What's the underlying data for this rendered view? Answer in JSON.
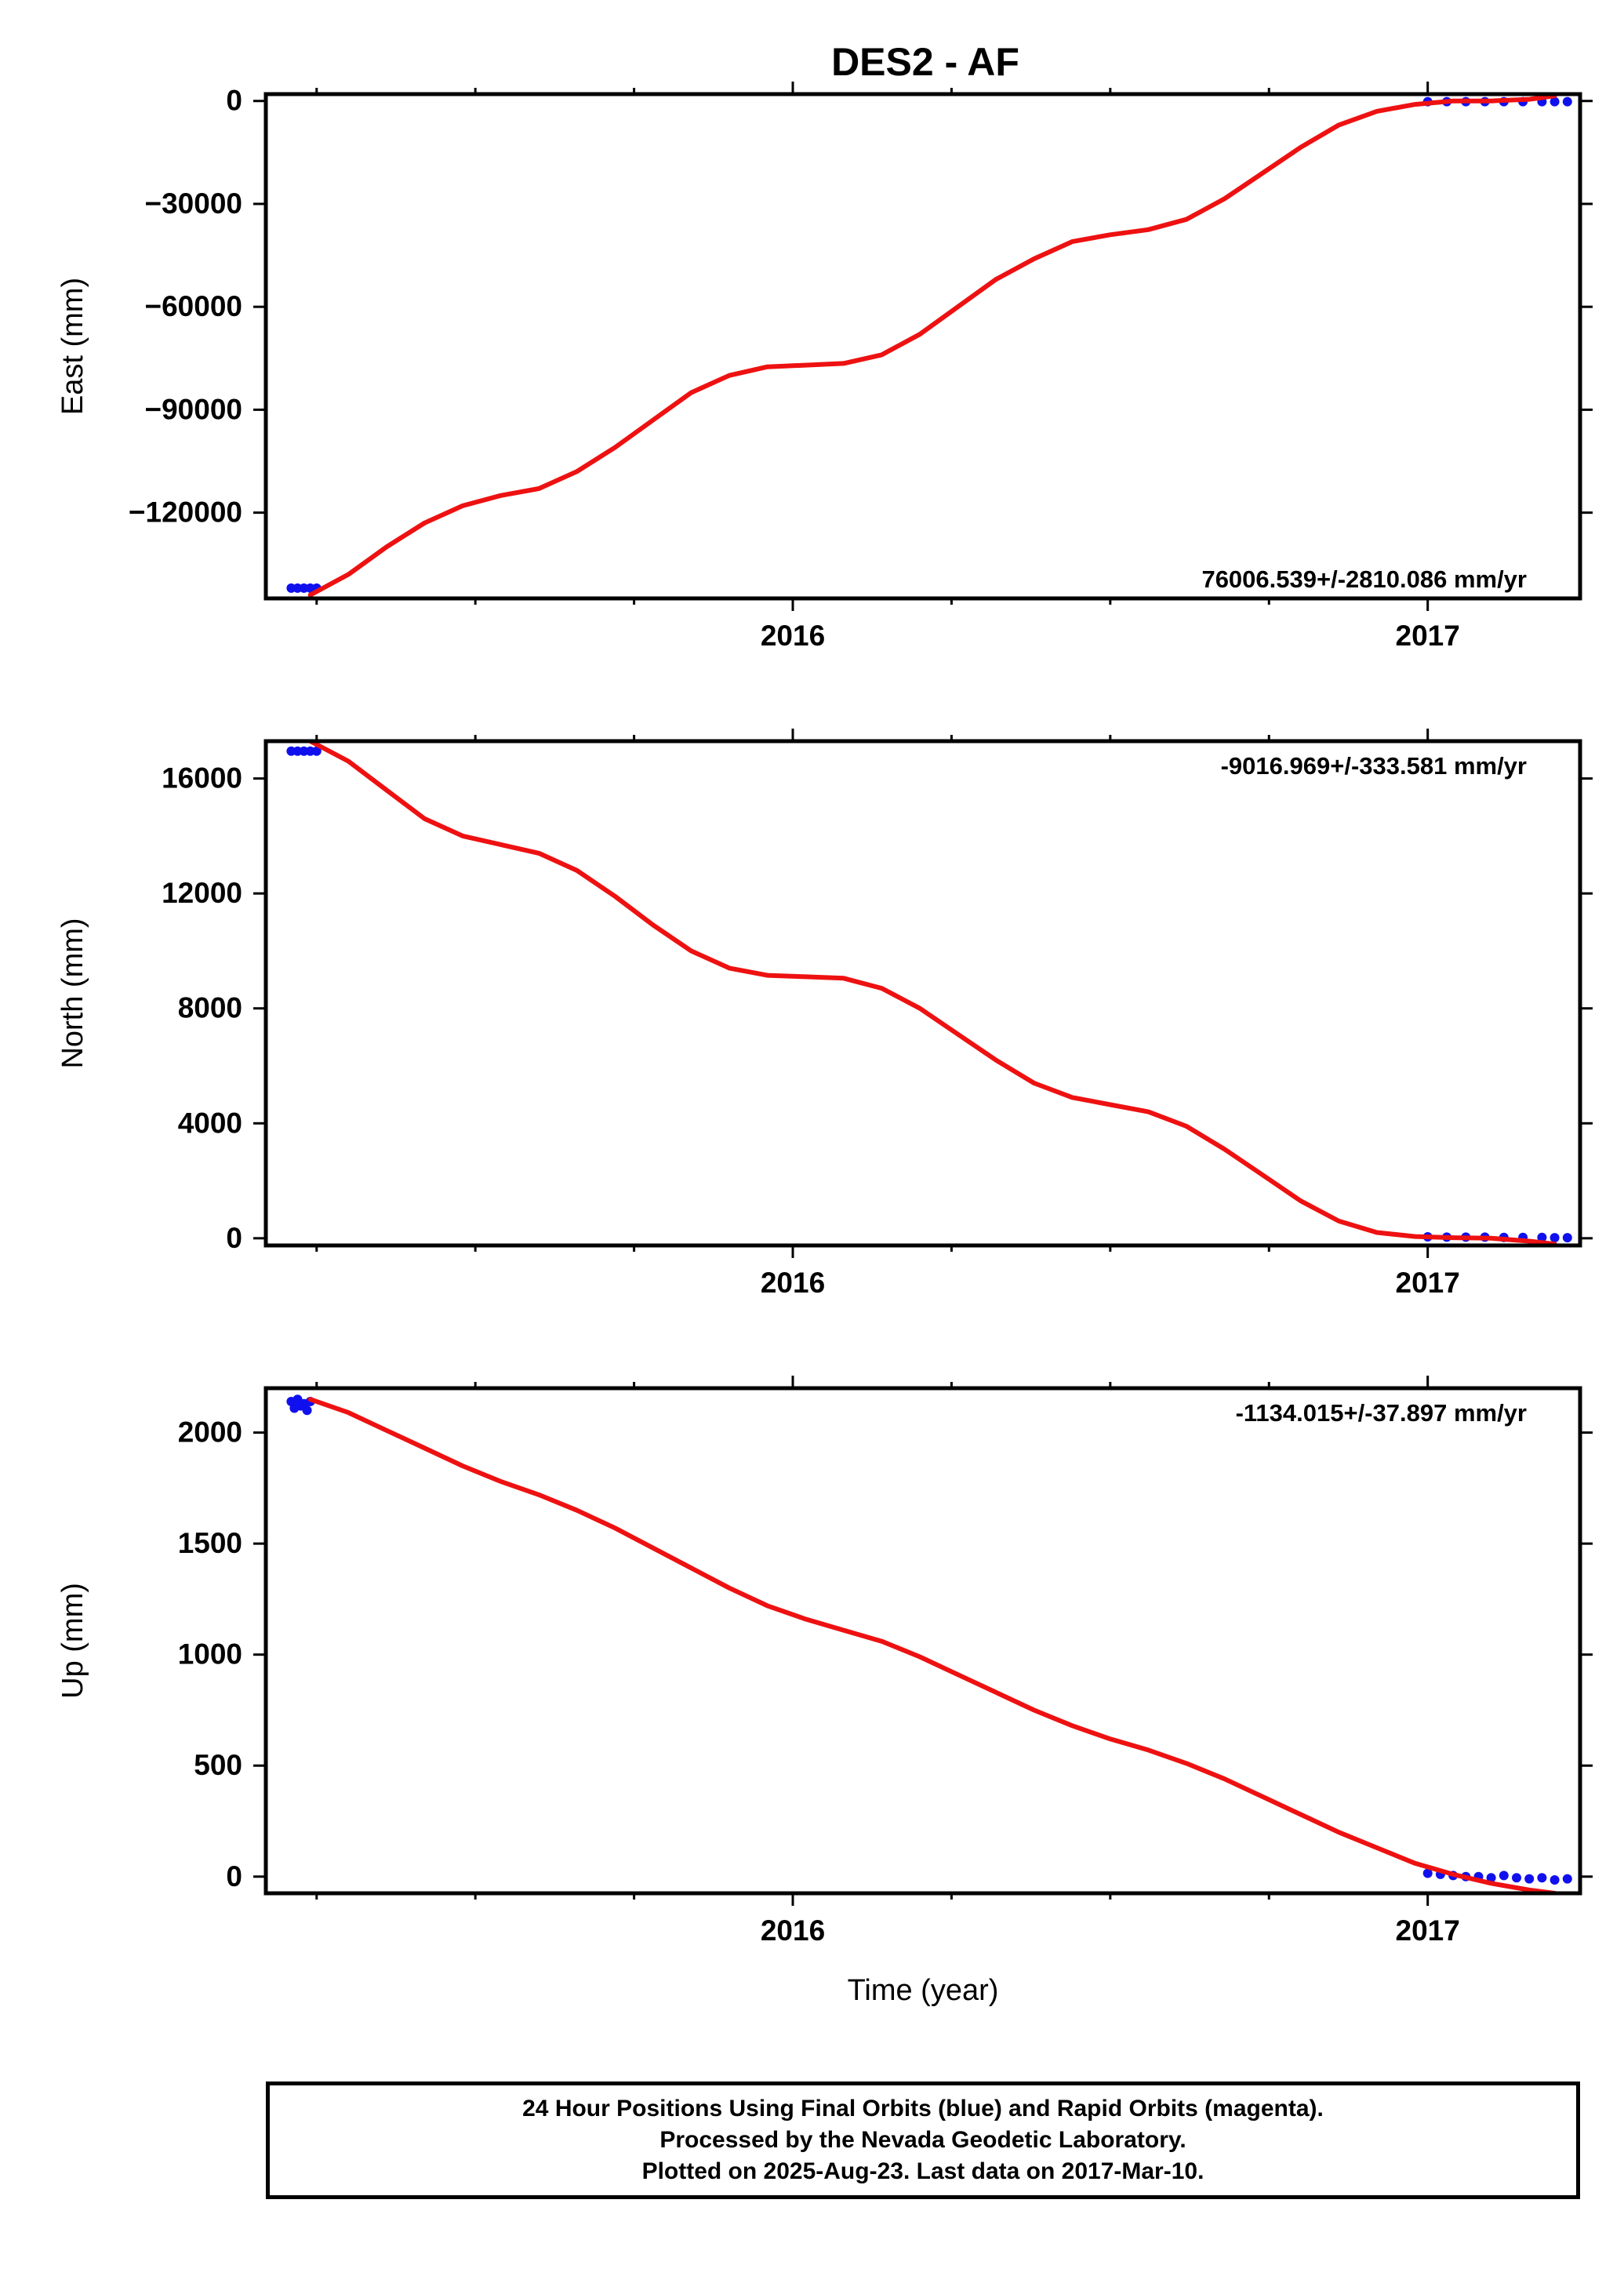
{
  "title": "DES2 - AF",
  "colors": {
    "final_orbits": "#1010ee",
    "model_fit": "#ee1111",
    "frame": "#000000"
  },
  "footer": {
    "line1": "24 Hour Positions Using Final Orbits (blue) and Rapid Orbits (magenta).",
    "line2": "Processed by the Nevada Geodetic Laboratory.",
    "line3": "Plotted on 2025-Aug-23. Last data on 2017-Mar-10."
  },
  "chart_data": [
    {
      "type": "scatter",
      "component": "east",
      "title": "DES2 - AF",
      "ylabel": "East (mm)",
      "xlabel": "",
      "xlim": [
        2015.17,
        2017.24
      ],
      "ylim": [
        -145000,
        2000
      ],
      "yticks": [
        0,
        -30000,
        -60000,
        -90000,
        -120000
      ],
      "ytick_labels": [
        "0",
        "−30000",
        "−60000",
        "−90000",
        "−120000"
      ],
      "xticks": [
        2016,
        2017
      ],
      "xtick_labels": [
        "2016",
        "2017"
      ],
      "minor_xticks": [
        2015.25,
        2015.5,
        2015.75,
        2016.25,
        2016.5,
        2016.75
      ],
      "rate_label": "76006.539+/-2810.086 mm/yr",
      "rate_position": "bottom-right",
      "grid": false,
      "series": [
        {
          "kind": "points",
          "color": "#1010ee",
          "x": [
            2015.21,
            2015.22,
            2015.23,
            2015.24,
            2015.25,
            2017.0,
            2017.03,
            2017.06,
            2017.09,
            2017.12,
            2017.15,
            2017.18,
            2017.2,
            2017.22
          ],
          "y": [
            -142000,
            -142000,
            -142000,
            -142000,
            -142000,
            -200,
            -200,
            -200,
            -200,
            -200,
            -200,
            -200,
            -200,
            -200
          ]
        },
        {
          "kind": "line",
          "color": "#ee1111",
          "x": [
            2015.24,
            2015.3,
            2015.36,
            2015.42,
            2015.48,
            2015.54,
            2015.6,
            2015.66,
            2015.72,
            2015.78,
            2015.84,
            2015.9,
            2015.96,
            2016.02,
            2016.08,
            2016.14,
            2016.2,
            2016.26,
            2016.32,
            2016.38,
            2016.44,
            2016.5,
            2016.56,
            2016.62,
            2016.68,
            2016.74,
            2016.8,
            2016.86,
            2016.92,
            2016.98,
            2017.04,
            2017.1,
            2017.16,
            2017.2
          ],
          "y": [
            -144000,
            -138000,
            -130000,
            -123000,
            -118000,
            -115000,
            -113000,
            -108000,
            -101000,
            -93000,
            -85000,
            -80000,
            -77500,
            -77000,
            -76500,
            -74000,
            -68000,
            -60000,
            -52000,
            -46000,
            -41000,
            -39000,
            -37500,
            -34500,
            -28500,
            -21000,
            -13500,
            -7000,
            -3000,
            -1000,
            0,
            0,
            500,
            1500
          ]
        }
      ]
    },
    {
      "type": "scatter",
      "component": "north",
      "ylabel": "North (mm)",
      "xlabel": "",
      "xlim": [
        2015.17,
        2017.24
      ],
      "ylim": [
        -250,
        17300
      ],
      "yticks": [
        16000,
        12000,
        8000,
        4000,
        0
      ],
      "ytick_labels": [
        "16000",
        "12000",
        "8000",
        "4000",
        "0"
      ],
      "xticks": [
        2016,
        2017
      ],
      "xtick_labels": [
        "2016",
        "2017"
      ],
      "minor_xticks": [
        2015.25,
        2015.5,
        2015.75,
        2016.25,
        2016.5,
        2016.75
      ],
      "rate_label": "-9016.969+/-333.581 mm/yr",
      "rate_position": "top-right",
      "grid": false,
      "series": [
        {
          "kind": "points",
          "color": "#1010ee",
          "x": [
            2015.21,
            2015.22,
            2015.23,
            2015.24,
            2015.25,
            2017.0,
            2017.03,
            2017.06,
            2017.09,
            2017.12,
            2017.15,
            2017.18,
            2017.2,
            2017.22
          ],
          "y": [
            16950,
            16950,
            16950,
            16950,
            16950,
            50,
            40,
            40,
            40,
            30,
            30,
            30,
            20,
            20
          ]
        },
        {
          "kind": "line",
          "color": "#ee1111",
          "x": [
            2015.24,
            2015.3,
            2015.36,
            2015.42,
            2015.48,
            2015.54,
            2015.6,
            2015.66,
            2015.72,
            2015.78,
            2015.84,
            2015.9,
            2015.96,
            2016.02,
            2016.08,
            2016.14,
            2016.2,
            2016.26,
            2016.32,
            2016.38,
            2016.44,
            2016.5,
            2016.56,
            2016.62,
            2016.68,
            2016.74,
            2016.8,
            2016.86,
            2016.92,
            2016.98,
            2017.04,
            2017.1,
            2017.16,
            2017.2
          ],
          "y": [
            17300,
            16600,
            15600,
            14600,
            14000,
            13700,
            13400,
            12800,
            11900,
            10900,
            10000,
            9400,
            9150,
            9100,
            9050,
            8700,
            8000,
            7100,
            6200,
            5400,
            4900,
            4650,
            4400,
            3900,
            3100,
            2200,
            1300,
            600,
            200,
            60,
            20,
            0,
            -100,
            -200
          ]
        }
      ]
    },
    {
      "type": "scatter",
      "component": "up",
      "ylabel": "Up (mm)",
      "xlabel": "Time (year)",
      "xlim": [
        2015.17,
        2017.24
      ],
      "ylim": [
        -75,
        2200
      ],
      "yticks": [
        2000,
        1500,
        1000,
        500,
        0
      ],
      "ytick_labels": [
        "2000",
        "1500",
        "1000",
        "500",
        "0"
      ],
      "xticks": [
        2016,
        2017
      ],
      "xtick_labels": [
        "2016",
        "2017"
      ],
      "minor_xticks": [
        2015.25,
        2015.5,
        2015.75,
        2016.25,
        2016.5,
        2016.75
      ],
      "rate_label": "-1134.015+/-37.897 mm/yr",
      "rate_position": "top-right",
      "grid": false,
      "series": [
        {
          "kind": "points",
          "color": "#1010ee",
          "x": [
            2015.21,
            2015.215,
            2015.22,
            2015.225,
            2015.23,
            2015.235,
            2015.24,
            2017.0,
            2017.02,
            2017.04,
            2017.06,
            2017.08,
            2017.1,
            2017.12,
            2017.14,
            2017.16,
            2017.18,
            2017.2,
            2017.22
          ],
          "y": [
            2140,
            2110,
            2150,
            2120,
            2130,
            2100,
            2140,
            15,
            10,
            5,
            0,
            0,
            -5,
            5,
            -5,
            -10,
            -5,
            -15,
            -10
          ]
        },
        {
          "kind": "line",
          "color": "#ee1111",
          "x": [
            2015.24,
            2015.3,
            2015.36,
            2015.42,
            2015.48,
            2015.54,
            2015.6,
            2015.66,
            2015.72,
            2015.78,
            2015.84,
            2015.9,
            2015.96,
            2016.02,
            2016.08,
            2016.14,
            2016.2,
            2016.26,
            2016.32,
            2016.38,
            2016.44,
            2016.5,
            2016.56,
            2016.62,
            2016.68,
            2016.74,
            2016.8,
            2016.86,
            2016.92,
            2016.98,
            2017.04,
            2017.1,
            2017.16,
            2017.2
          ],
          "y": [
            2150,
            2090,
            2010,
            1930,
            1850,
            1780,
            1720,
            1650,
            1570,
            1480,
            1390,
            1300,
            1220,
            1160,
            1110,
            1060,
            990,
            910,
            830,
            750,
            680,
            620,
            570,
            510,
            440,
            360,
            280,
            200,
            130,
            60,
            10,
            -30,
            -60,
            -75
          ]
        }
      ]
    }
  ]
}
